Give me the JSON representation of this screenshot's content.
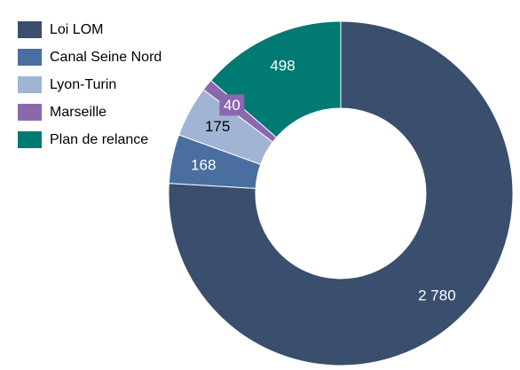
{
  "chart_data": {
    "type": "pie",
    "variant": "donut",
    "categories": [
      "Loi LOM",
      "Canal Seine Nord",
      "Lyon-Turin",
      "Marseille",
      "Plan de relance"
    ],
    "values": [
      2780,
      168,
      175,
      40,
      498
    ],
    "value_labels": [
      "2 780",
      "168",
      "175",
      "40",
      "498"
    ],
    "colors": [
      "#3a4e6e",
      "#4a6ea0",
      "#a2b4d4",
      "#8a68ae",
      "#007a72"
    ],
    "label_colors": [
      "#ffffff",
      "#ffffff",
      "#000000",
      "#ffffff",
      "#ffffff"
    ],
    "start": "12 o'clock",
    "direction": "clockwise",
    "legend": "top-left"
  }
}
